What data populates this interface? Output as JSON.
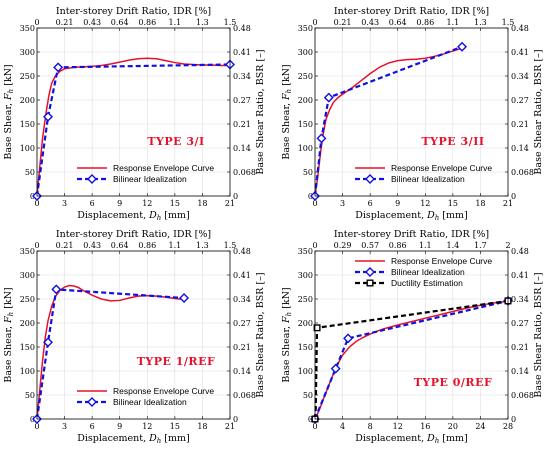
{
  "figure": {
    "style": {
      "response_color": "#e8102a",
      "bilinear_color": "#1010e0",
      "ductility_color": "#000000",
      "tag_color": "#e8102a"
    }
  },
  "chart_data": [
    {
      "type": "line",
      "panel_label": "TYPE 3/I",
      "xlabel": "Displacement, $D_h$ [mm]",
      "ylabel": "Base Shear, $F_h$ [kN]",
      "y2label": "Base Shear Ratio, BSR [–]",
      "x2label": "Inter-storey Drift Ratio, IDR [%]",
      "xlim": [
        0,
        21
      ],
      "ylim": [
        0,
        350
      ],
      "xticks": [
        "0",
        "3",
        "6",
        "9",
        "12",
        "15",
        "18",
        "21"
      ],
      "yticks": [
        "0",
        "50",
        "100",
        "150",
        "200",
        "250",
        "300",
        "350"
      ],
      "x2ticks": [
        "0",
        "0.21",
        "0.43",
        "0.64",
        "0.86",
        "1.1",
        "1.3",
        "1.5"
      ],
      "y2ticks": [
        "0",
        "0.068",
        "0.14",
        "0.21",
        "0.27",
        "0.34",
        "0.41",
        "0.48"
      ],
      "grid": true,
      "legend_placement": "bottom-center",
      "series": [
        {
          "name": "Response Envelope Curve",
          "style": "solid",
          "x": [
            0,
            0.3,
            0.6,
            1.0,
            1.3,
            1.6,
            2.0,
            2.5,
            3.0,
            4.0,
            5.0,
            6.0,
            7.0,
            8.0,
            9.0,
            10.0,
            11.0,
            12.0,
            13.0,
            14.0,
            15.0,
            16.0,
            17.0,
            18.0,
            19.0,
            20.0,
            21.0
          ],
          "y": [
            0,
            60,
            120,
            175,
            210,
            235,
            250,
            260,
            265,
            268,
            269,
            270,
            272,
            275,
            279,
            283,
            286,
            287,
            286,
            282,
            278,
            275,
            274,
            273,
            273,
            272,
            272
          ]
        },
        {
          "name": "Bilinear Idealization",
          "style": "dashed-diamond",
          "x": [
            0,
            1.2,
            2.3,
            21.0
          ],
          "y": [
            0,
            165,
            268,
            274
          ],
          "markers": [
            0,
            1,
            2,
            3
          ]
        }
      ]
    },
    {
      "type": "line",
      "panel_label": "TYPE 3/II",
      "xlabel": "Displacement, $D_h$ [mm]",
      "ylabel": "Base Shear, $F_h$ [kN]",
      "y2label": "Base Shear Ratio, BSR [–]",
      "x2label": "Inter-storey Drift Ratio, IDR [%]",
      "xlim": [
        0,
        21
      ],
      "ylim": [
        0,
        350
      ],
      "xticks": [
        "0",
        "3",
        "6",
        "9",
        "12",
        "15",
        "18",
        "21"
      ],
      "yticks": [
        "0",
        "50",
        "100",
        "150",
        "200",
        "250",
        "300",
        "350"
      ],
      "x2ticks": [
        "0",
        "0.21",
        "0.43",
        "0.64",
        "0.86",
        "1.1",
        "1.3",
        "1.5"
      ],
      "y2ticks": [
        "0",
        "0.068",
        "0.14",
        "0.21",
        "0.27",
        "0.34",
        "0.41",
        "0.48"
      ],
      "grid": true,
      "legend_placement": "bottom-center",
      "series": [
        {
          "name": "Response Envelope Curve",
          "style": "solid",
          "x": [
            0,
            0.3,
            0.6,
            0.9,
            1.2,
            1.6,
            2.0,
            2.5,
            3.0,
            4.0,
            5.0,
            6.0,
            7.0,
            8.0,
            9.0,
            10.0,
            11.0,
            12.0,
            13.0,
            14.0,
            15.0,
            16.0
          ],
          "y": [
            0,
            40,
            90,
            130,
            160,
            180,
            195,
            205,
            212,
            225,
            240,
            255,
            268,
            277,
            282,
            284,
            285,
            287,
            291,
            296,
            302,
            308
          ]
        },
        {
          "name": "Bilinear Idealization",
          "style": "dashed-diamond",
          "x": [
            0,
            0.7,
            1.5,
            16.0
          ],
          "y": [
            0,
            120,
            205,
            311
          ],
          "markers": [
            0,
            1,
            2,
            3
          ]
        }
      ]
    },
    {
      "type": "line",
      "panel_label": "TYPE 1/REF",
      "xlabel": "Displacement, $D_h$ [mm]",
      "ylabel": "Base Shear, $F_h$ [kN]",
      "y2label": "Base Shear Ratio, BSR [–]",
      "x2label": "Inter-storey Drift Ratio, IDR [%]",
      "xlim": [
        0,
        21
      ],
      "ylim": [
        0,
        350
      ],
      "xticks": [
        "0",
        "3",
        "6",
        "9",
        "12",
        "15",
        "18",
        "21"
      ],
      "yticks": [
        "0",
        "50",
        "100",
        "150",
        "200",
        "250",
        "300",
        "350"
      ],
      "x2ticks": [
        "0",
        "0.21",
        "0.43",
        "0.64",
        "0.86",
        "1.1",
        "1.3",
        "1.5"
      ],
      "y2ticks": [
        "0",
        "0.068",
        "0.14",
        "0.21",
        "0.27",
        "0.34",
        "0.41",
        "0.48"
      ],
      "grid": true,
      "legend_placement": "bottom-center",
      "series": [
        {
          "name": "Response Envelope Curve",
          "style": "solid",
          "x": [
            0,
            0.3,
            0.6,
            0.9,
            1.2,
            1.6,
            2.0,
            2.5,
            3.0,
            3.5,
            4.0,
            4.5,
            5.0,
            6.0,
            7.0,
            8.0,
            9.0,
            10.0,
            11.0,
            12.0,
            13.0,
            14.0,
            15.0,
            16.0
          ],
          "y": [
            0,
            60,
            120,
            170,
            205,
            235,
            255,
            268,
            275,
            278,
            277,
            274,
            268,
            258,
            250,
            246,
            247,
            252,
            256,
            257,
            256,
            254,
            251,
            249
          ]
        },
        {
          "name": "Bilinear Idealization",
          "style": "dashed-diamond",
          "x": [
            0,
            1.2,
            2.1,
            16.0
          ],
          "y": [
            0,
            160,
            270,
            252
          ],
          "markers": [
            0,
            1,
            2,
            3
          ]
        }
      ]
    },
    {
      "type": "line",
      "panel_label": "TYPE 0/REF",
      "xlabel": "Displacement, $D_h$ [mm]",
      "ylabel": "Base Shear, $F_h$ [kN]",
      "y2label": "Base Shear Ratio, BSR [–]",
      "x2label": "Inter-storey Drift Ratio, IDR [%]",
      "xlim": [
        0,
        28
      ],
      "ylim": [
        0,
        350
      ],
      "xticks": [
        "0",
        "4",
        "8",
        "12",
        "16",
        "20",
        "24",
        "28"
      ],
      "yticks": [
        "0",
        "50",
        "100",
        "150",
        "200",
        "250",
        "300",
        "350"
      ],
      "x2ticks": [
        "0",
        "0.29",
        "0.57",
        "0.86",
        "1.1",
        "1.4",
        "1.7",
        "2"
      ],
      "y2ticks": [
        "0",
        "0.068",
        "0.14",
        "0.21",
        "0.27",
        "0.34",
        "0.41",
        "0.48"
      ],
      "grid": true,
      "legend_placement": "top-center",
      "series": [
        {
          "name": "Response Envelope Curve",
          "style": "solid",
          "x": [
            0,
            0.5,
            1.0,
            1.5,
            2.0,
            2.5,
            3.0,
            3.5,
            4.0,
            5.0,
            6.0,
            7.0,
            8.0,
            9.0,
            10.0,
            12.0,
            14.0,
            16.0,
            18.0,
            20.0,
            22.0,
            24.0,
            26.0,
            28.0
          ],
          "y": [
            0,
            15,
            33,
            52,
            70,
            88,
            105,
            120,
            133,
            150,
            162,
            170,
            177,
            183,
            188,
            196,
            203,
            210,
            217,
            224,
            231,
            237,
            242,
            245
          ]
        },
        {
          "name": "Bilinear Idealization",
          "style": "dashed-diamond",
          "x": [
            0,
            3.0,
            4.8,
            28.0
          ],
          "y": [
            0,
            105,
            168,
            246
          ],
          "markers": [
            0,
            1,
            2,
            3
          ]
        },
        {
          "name": "Ductility Estimation",
          "style": "dashed-square",
          "x": [
            0,
            0.1,
            0.3,
            28.0
          ],
          "y": [
            0,
            20,
            190,
            246
          ],
          "markers": [
            0,
            2,
            3
          ]
        }
      ]
    }
  ]
}
